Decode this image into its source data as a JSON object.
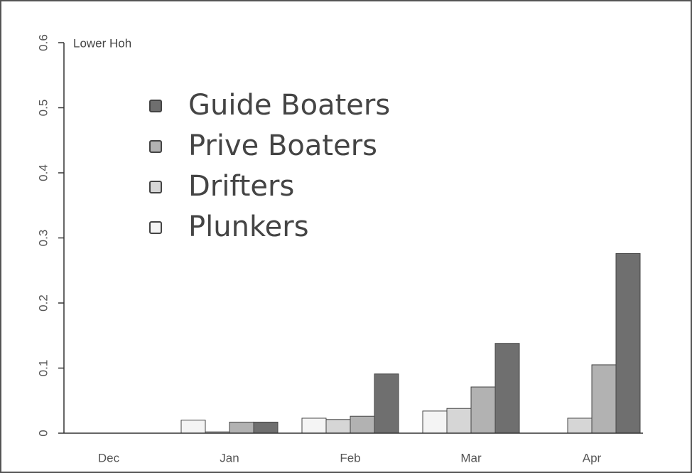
{
  "chart_data": {
    "type": "bar",
    "title": "Lower Hoh",
    "categories": [
      "Dec",
      "Jan",
      "Feb",
      "Mar",
      "Apr"
    ],
    "series": [
      {
        "name": "Plunkers",
        "color": "#f4f4f4",
        "values": [
          0,
          0.02,
          0.023,
          0.034,
          0
        ]
      },
      {
        "name": "Drifters",
        "color": "#d6d6d6",
        "values": [
          0,
          0.002,
          0.021,
          0.038,
          0.023
        ]
      },
      {
        "name": "Prive Boaters",
        "color": "#b2b2b2",
        "values": [
          0,
          0.017,
          0.026,
          0.071,
          0.105
        ]
      },
      {
        "name": "Guide Boaters",
        "color": "#6f6f6f",
        "values": [
          0,
          0.017,
          0.091,
          0.138,
          0.276
        ]
      }
    ],
    "ylim": [
      0,
      0.6
    ],
    "yticks": [
      0,
      0.1,
      0.2,
      0.3,
      0.4,
      0.5,
      0.6
    ]
  }
}
